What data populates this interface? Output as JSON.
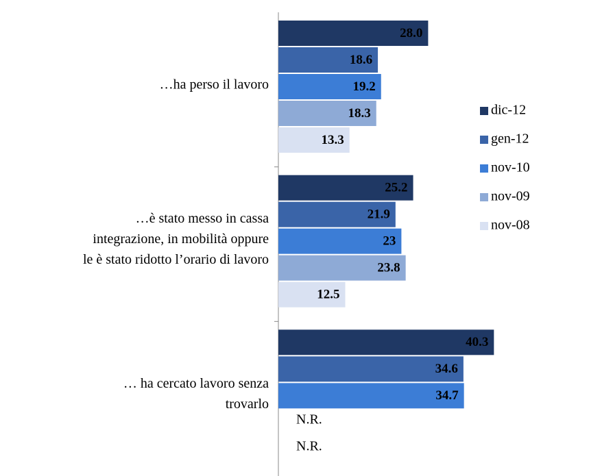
{
  "chart_data": {
    "type": "bar",
    "orientation": "horizontal",
    "categories": [
      [
        "…ha perso il lavoro"
      ],
      [
        "…è stato messo in cassa",
        "integrazione, in mobilità oppure",
        "le è stato ridotto l’orario di lavoro"
      ],
      [
        "… ha cercato lavoro senza",
        "trovarlo"
      ]
    ],
    "series": [
      {
        "name": "dic-12",
        "color": "#1f3864",
        "values": [
          28.0,
          25.2,
          40.3
        ],
        "value_labels": [
          "28.0",
          "25.2",
          "40.3"
        ]
      },
      {
        "name": "gen-12",
        "color": "#3a64a8",
        "values": [
          18.6,
          21.9,
          34.6
        ],
        "value_labels": [
          "18.6",
          "21.9",
          "34.6"
        ]
      },
      {
        "name": "nov-10",
        "color": "#3c7dd6",
        "values": [
          19.2,
          23,
          34.7
        ],
        "value_labels": [
          "19.2",
          "23",
          "34.7"
        ]
      },
      {
        "name": "nov-09",
        "color": "#8eaad6",
        "values": [
          18.3,
          23.8,
          null
        ],
        "value_labels": [
          "18.3",
          "23.8",
          "N.R."
        ]
      },
      {
        "name": "nov-08",
        "color": "#d9e1f2",
        "values": [
          13.3,
          12.5,
          null
        ],
        "value_labels": [
          "13.3",
          "12.5",
          "N.R."
        ]
      }
    ],
    "xlim": [
      0,
      50
    ],
    "legend": "right"
  }
}
